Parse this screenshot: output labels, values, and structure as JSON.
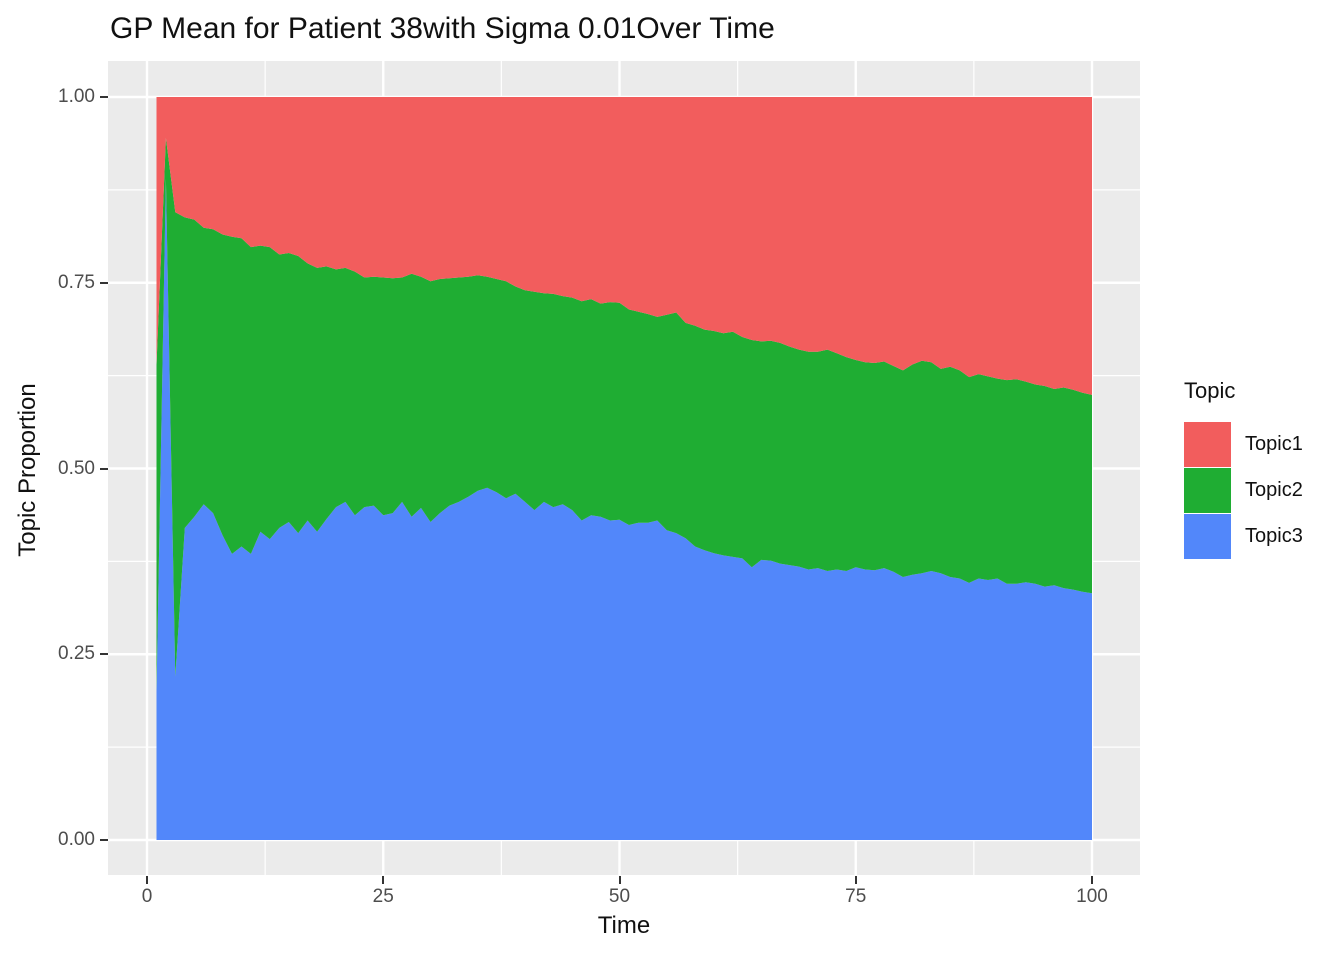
{
  "title": "GP Mean for Patient 38with Sigma 0.01Over Time",
  "colors": {
    "panel_bg": "#EBEBEB",
    "grid": "#FFFFFF",
    "tick_text": "#4D4D4D",
    "tick_mark": "#333333",
    "topic1": "#F25D5D",
    "topic2": "#1FAD33",
    "topic3": "#5287FA"
  },
  "chart_data": {
    "type": "area",
    "stacked": true,
    "title": "GP Mean for Patient 38with Sigma 0.01Over Time",
    "xlabel": "Time",
    "ylabel": "Topic Proportion",
    "legend_title": "Topic",
    "legend_position": "right",
    "grid": true,
    "xlim": [
      0,
      100
    ],
    "ylim": [
      0.0,
      1.0
    ],
    "x_ticks": [
      0,
      25,
      50,
      75,
      100
    ],
    "y_ticks": [
      {
        "v": 0.0,
        "label": "0.00"
      },
      {
        "v": 0.25,
        "label": "0.25"
      },
      {
        "v": 0.5,
        "label": "0.50"
      },
      {
        "v": 0.75,
        "label": "0.75"
      },
      {
        "v": 1.0,
        "label": "1.00"
      }
    ],
    "x_minor_ticks": [
      12.5,
      37.5,
      62.5,
      87.5
    ],
    "y_minor_ticks": [
      0.125,
      0.375,
      0.625,
      0.875
    ],
    "stack_order_bottom_to_top": [
      "Topic3",
      "Topic2",
      "Topic1"
    ],
    "x": [
      1,
      2,
      3,
      4,
      5,
      6,
      7,
      8,
      9,
      10,
      11,
      12,
      13,
      14,
      15,
      16,
      17,
      18,
      19,
      20,
      21,
      22,
      23,
      24,
      25,
      26,
      27,
      28,
      29,
      30,
      31,
      32,
      33,
      34,
      35,
      36,
      37,
      38,
      39,
      40,
      41,
      42,
      43,
      44,
      45,
      46,
      47,
      48,
      49,
      50,
      51,
      52,
      53,
      54,
      55,
      56,
      57,
      58,
      59,
      60,
      61,
      62,
      63,
      64,
      65,
      66,
      67,
      68,
      69,
      70,
      71,
      72,
      73,
      74,
      75,
      76,
      77,
      78,
      79,
      80,
      81,
      82,
      83,
      84,
      85,
      86,
      87,
      88,
      89,
      90,
      91,
      92,
      93,
      94,
      95,
      96,
      97,
      98,
      99,
      100
    ],
    "series": [
      {
        "name": "Topic1",
        "color": "#F25D5D",
        "values": [
          0.36,
          0.055,
          0.155,
          0.162,
          0.165,
          0.176,
          0.178,
          0.185,
          0.188,
          0.19,
          0.202,
          0.2,
          0.202,
          0.212,
          0.21,
          0.214,
          0.224,
          0.23,
          0.228,
          0.232,
          0.23,
          0.235,
          0.243,
          0.242,
          0.243,
          0.244,
          0.243,
          0.238,
          0.242,
          0.248,
          0.245,
          0.244,
          0.243,
          0.242,
          0.24,
          0.242,
          0.245,
          0.248,
          0.255,
          0.26,
          0.262,
          0.264,
          0.265,
          0.268,
          0.27,
          0.275,
          0.272,
          0.278,
          0.276,
          0.277,
          0.286,
          0.289,
          0.292,
          0.296,
          0.293,
          0.29,
          0.304,
          0.308,
          0.313,
          0.315,
          0.318,
          0.316,
          0.323,
          0.327,
          0.329,
          0.328,
          0.331,
          0.336,
          0.34,
          0.343,
          0.343,
          0.34,
          0.345,
          0.35,
          0.354,
          0.357,
          0.358,
          0.356,
          0.362,
          0.368,
          0.36,
          0.355,
          0.357,
          0.366,
          0.363,
          0.368,
          0.377,
          0.373,
          0.376,
          0.379,
          0.381,
          0.38,
          0.383,
          0.387,
          0.389,
          0.393,
          0.391,
          0.394,
          0.398,
          0.401
        ]
      },
      {
        "name": "Topic2",
        "color": "#1FAD33",
        "values": [
          0.44,
          0.055,
          0.625,
          0.418,
          0.4,
          0.372,
          0.382,
          0.405,
          0.427,
          0.415,
          0.413,
          0.385,
          0.393,
          0.368,
          0.362,
          0.373,
          0.346,
          0.355,
          0.34,
          0.32,
          0.315,
          0.328,
          0.309,
          0.308,
          0.32,
          0.316,
          0.302,
          0.327,
          0.311,
          0.324,
          0.315,
          0.306,
          0.302,
          0.296,
          0.29,
          0.284,
          0.287,
          0.292,
          0.279,
          0.285,
          0.294,
          0.281,
          0.287,
          0.28,
          0.286,
          0.295,
          0.291,
          0.287,
          0.294,
          0.292,
          0.29,
          0.284,
          0.281,
          0.274,
          0.29,
          0.297,
          0.29,
          0.297,
          0.297,
          0.299,
          0.299,
          0.303,
          0.298,
          0.306,
          0.294,
          0.296,
          0.297,
          0.294,
          0.292,
          0.293,
          0.291,
          0.298,
          0.291,
          0.288,
          0.279,
          0.279,
          0.279,
          0.278,
          0.277,
          0.278,
          0.283,
          0.286,
          0.281,
          0.275,
          0.283,
          0.28,
          0.277,
          0.275,
          0.274,
          0.269,
          0.274,
          0.275,
          0.27,
          0.268,
          0.27,
          0.264,
          0.27,
          0.269,
          0.268,
          0.267
        ]
      },
      {
        "name": "Topic3",
        "color": "#5287FA",
        "values": [
          0.2,
          0.89,
          0.22,
          0.42,
          0.435,
          0.452,
          0.44,
          0.41,
          0.385,
          0.395,
          0.385,
          0.415,
          0.405,
          0.42,
          0.428,
          0.413,
          0.43,
          0.415,
          0.432,
          0.448,
          0.455,
          0.437,
          0.448,
          0.45,
          0.437,
          0.44,
          0.455,
          0.435,
          0.447,
          0.428,
          0.44,
          0.45,
          0.455,
          0.462,
          0.47,
          0.474,
          0.468,
          0.46,
          0.466,
          0.455,
          0.444,
          0.455,
          0.448,
          0.452,
          0.444,
          0.43,
          0.437,
          0.435,
          0.43,
          0.431,
          0.424,
          0.427,
          0.427,
          0.43,
          0.417,
          0.413,
          0.406,
          0.395,
          0.39,
          0.386,
          0.383,
          0.381,
          0.379,
          0.367,
          0.377,
          0.376,
          0.372,
          0.37,
          0.368,
          0.364,
          0.366,
          0.362,
          0.364,
          0.362,
          0.367,
          0.364,
          0.363,
          0.366,
          0.361,
          0.354,
          0.357,
          0.359,
          0.362,
          0.359,
          0.354,
          0.352,
          0.346,
          0.352,
          0.35,
          0.352,
          0.345,
          0.345,
          0.347,
          0.345,
          0.341,
          0.343,
          0.339,
          0.337,
          0.334,
          0.332
        ]
      }
    ]
  },
  "legend": {
    "title": "Topic",
    "items": [
      {
        "label": "Topic1",
        "color": "#F25D5D"
      },
      {
        "label": "Topic2",
        "color": "#1FAD33"
      },
      {
        "label": "Topic3",
        "color": "#5287FA"
      }
    ]
  }
}
